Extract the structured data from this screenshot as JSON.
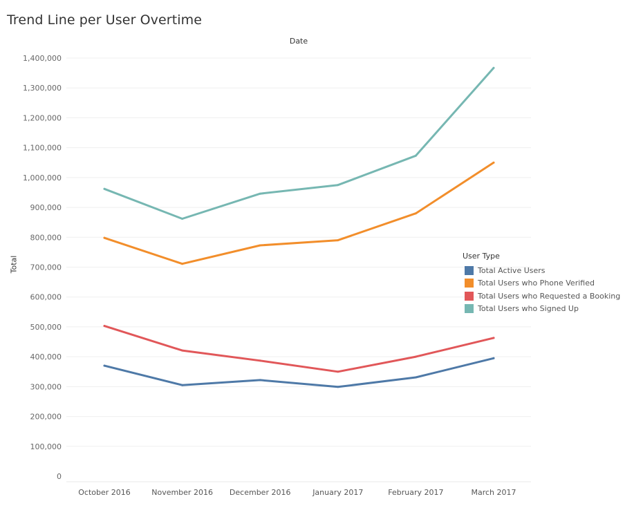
{
  "chart_data": {
    "type": "line",
    "title": "Trend Line per User Overtime",
    "xlabel": "Date",
    "ylabel": "Total",
    "categories": [
      "October 2016",
      "November 2016",
      "December 2016",
      "January 2017",
      "February 2017",
      "March 2017"
    ],
    "ylim": [
      0,
      1400000
    ],
    "yticks": [
      0,
      100000,
      200000,
      300000,
      400000,
      500000,
      600000,
      700000,
      800000,
      900000,
      1000000,
      1100000,
      1200000,
      1300000,
      1400000
    ],
    "ytick_labels": [
      "0",
      "100,000",
      "200,000",
      "300,000",
      "400,000",
      "500,000",
      "600,000",
      "700,000",
      "800,000",
      "900,000",
      "1,000,000",
      "1,100,000",
      "1,200,000",
      "1,300,000",
      "1,400,000"
    ],
    "grid": true,
    "legend": {
      "title": "User Type",
      "position": "right"
    },
    "series": [
      {
        "name": "Total Active Users",
        "color": "#4e79a7",
        "values": [
          370000,
          305000,
          322000,
          299000,
          331000,
          395000
        ]
      },
      {
        "name": "Total Users who Phone Verified",
        "color": "#f28e2b",
        "values": [
          798000,
          711000,
          773000,
          790000,
          880000,
          1050000
        ]
      },
      {
        "name": "Total Users who Requested a Booking",
        "color": "#e15759",
        "values": [
          503000,
          421000,
          387000,
          350000,
          400000,
          463000
        ]
      },
      {
        "name": "Total Users who Signed Up",
        "color": "#76b7b2",
        "values": [
          962000,
          862000,
          946000,
          975000,
          1073000,
          1367000
        ]
      }
    ]
  }
}
